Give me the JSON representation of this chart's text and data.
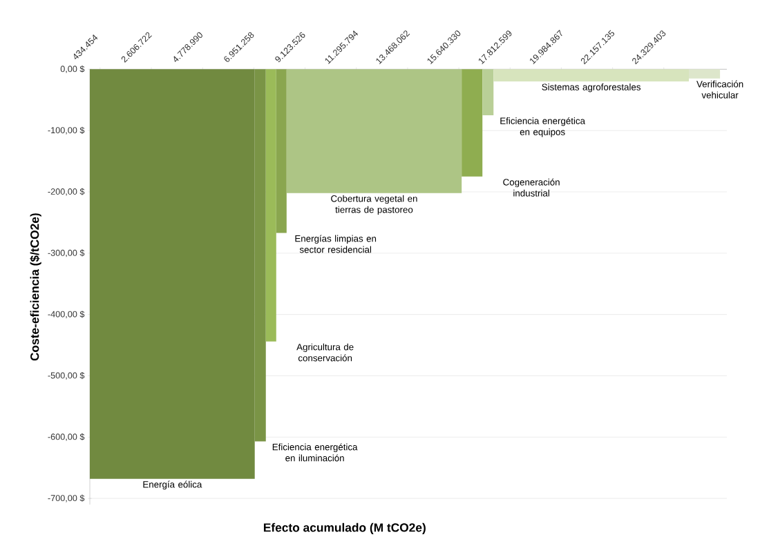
{
  "chart_data": {
    "type": "area",
    "xlabel": "Efecto acumulado (M tCO2e)",
    "ylabel": "Coste-eficiencia ($/tCO2e)",
    "xlim": [
      0,
      27000000
    ],
    "ylim": [
      -710,
      0
    ],
    "xticks": [
      {
        "value": 434454,
        "label": "434.454"
      },
      {
        "value": 2606722,
        "label": "2.606.722"
      },
      {
        "value": 4778990,
        "label": "4.778.990"
      },
      {
        "value": 6951258,
        "label": "6.951.258"
      },
      {
        "value": 9123526,
        "label": "9.123.526"
      },
      {
        "value": 11295794,
        "label": "11.295.794"
      },
      {
        "value": 13468062,
        "label": "13.468.062"
      },
      {
        "value": 15640330,
        "label": "15.640.330"
      },
      {
        "value": 17812599,
        "label": "17.812.599"
      },
      {
        "value": 19984867,
        "label": "19.984.867"
      },
      {
        "value": 22157135,
        "label": "22.157.135"
      },
      {
        "value": 24329403,
        "label": "24.329.403"
      }
    ],
    "yticks": [
      {
        "value": 0,
        "label": "0,00 $"
      },
      {
        "value": -100,
        "label": "-100,00 $"
      },
      {
        "value": -200,
        "label": "-200,00 $"
      },
      {
        "value": -300,
        "label": "-300,00 $"
      },
      {
        "value": -400,
        "label": "-400,00 $"
      },
      {
        "value": -500,
        "label": "-500,00 $"
      },
      {
        "value": -600,
        "label": "-600,00 $"
      },
      {
        "value": -700,
        "label": "-700,00 $"
      }
    ],
    "grid": "y",
    "series": [
      {
        "name": "Energía eólica",
        "color": "#718a40",
        "x": [
          0,
          6990000
        ],
        "values": [
          -668,
          -668
        ]
      },
      {
        "name": "Eficiencia energética en iluminación",
        "color": "#7a9446",
        "x": [
          6990000,
          7460000
        ],
        "values": [
          -607,
          -607
        ]
      },
      {
        "name": "Agricultura de conservación",
        "color": "#9bbb59",
        "x": [
          7460000,
          7900000
        ],
        "values": [
          -444,
          -444
        ]
      },
      {
        "name": "Energías limpias en sector residencial",
        "color": "#8aa64f",
        "x": [
          7900000,
          8340000
        ],
        "values": [
          -267,
          -267
        ]
      },
      {
        "name": "Cobertura vegetal en tierras de pastoreo",
        "color": "#adc585",
        "x": [
          8340000,
          15760000
        ],
        "values": [
          -202,
          -202
        ]
      },
      {
        "name": "Cogeneración industrial",
        "color": "#8fad50",
        "x": [
          15760000,
          16640000
        ],
        "values": [
          -175,
          -175
        ]
      },
      {
        "name": "Eficiencia energética en equipos",
        "color": "#b9cf97",
        "x": [
          16640000,
          17110000
        ],
        "values": [
          -75,
          -75
        ]
      },
      {
        "name": "Sistemas agroforestales",
        "color": "#d7e4bd",
        "x": [
          17110000,
          25390000
        ],
        "values": [
          -20,
          -20
        ]
      },
      {
        "name": "Verificación vehicular",
        "color": "#dde6cb",
        "x": [
          25390000,
          26710000
        ],
        "values": [
          -15,
          -15
        ]
      }
    ]
  }
}
